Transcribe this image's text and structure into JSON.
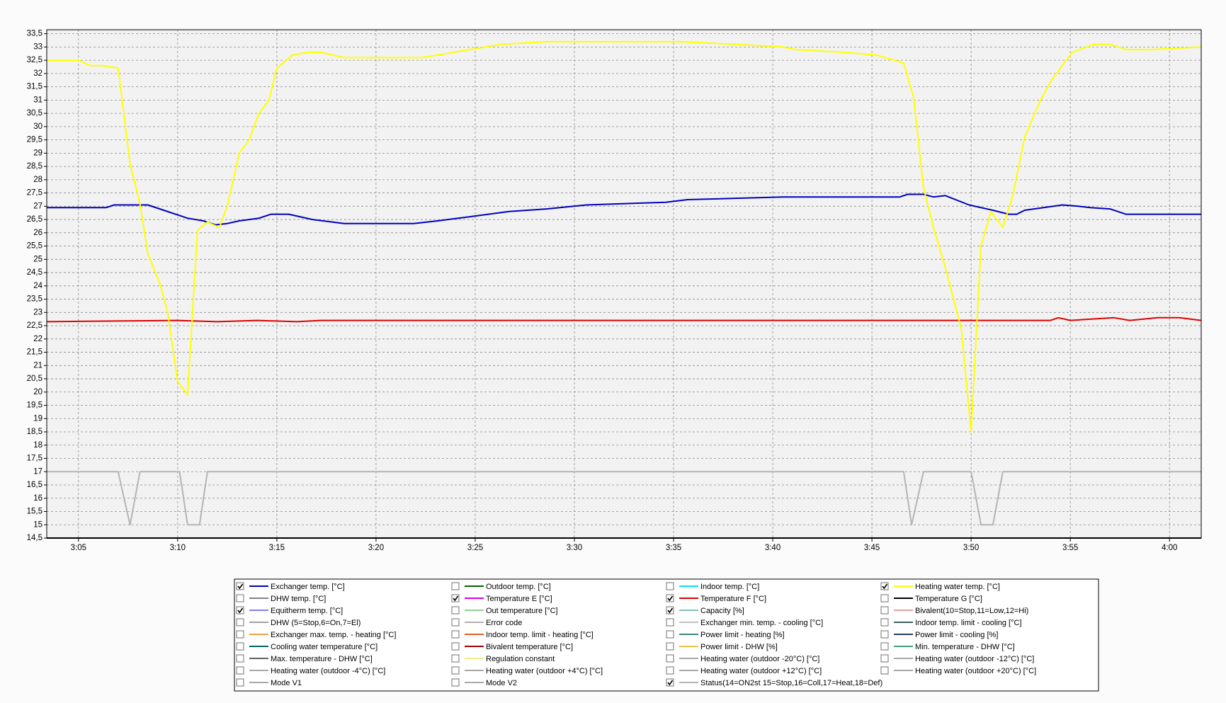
{
  "chart_data": {
    "type": "line",
    "xlim": [
      183.4,
      241.6
    ],
    "xticks": [
      {
        "value": 185,
        "label": "3:05"
      },
      {
        "value": 190,
        "label": "3:10"
      },
      {
        "value": 195,
        "label": "3:15"
      },
      {
        "value": 200,
        "label": "3:20"
      },
      {
        "value": 205,
        "label": "3:25"
      },
      {
        "value": 210,
        "label": "3:30"
      },
      {
        "value": 215,
        "label": "3:35"
      },
      {
        "value": 220,
        "label": "3:40"
      },
      {
        "value": 225,
        "label": "3:45"
      },
      {
        "value": 230,
        "label": "3:50"
      },
      {
        "value": 235,
        "label": "3:55"
      },
      {
        "value": 240,
        "label": "4:00"
      }
    ],
    "ylim": [
      14.5,
      33.65
    ],
    "yticks": [
      {
        "value": 14.5,
        "label": "14,5"
      },
      15,
      {
        "value": 15.5,
        "label": "15,5"
      },
      16,
      {
        "value": 16.5,
        "label": "16,5"
      },
      17,
      {
        "value": 17.5,
        "label": "17,5"
      },
      18,
      {
        "value": 18.5,
        "label": "18,5"
      },
      19,
      {
        "value": 19.5,
        "label": "19,5"
      },
      20,
      {
        "value": 20.5,
        "label": "20,5"
      },
      21,
      {
        "value": 21.5,
        "label": "21,5"
      },
      22,
      {
        "value": 22.5,
        "label": "22,5"
      },
      23,
      {
        "value": 23.5,
        "label": "23,5"
      },
      24,
      {
        "value": 24.5,
        "label": "24,5"
      },
      25,
      {
        "value": 25.5,
        "label": "25,5"
      },
      26,
      {
        "value": 26.5,
        "label": "26,5"
      },
      27,
      {
        "value": 27.5,
        "label": "27,5"
      },
      28,
      {
        "value": 28.5,
        "label": "28,5"
      },
      29,
      {
        "value": 29.5,
        "label": "29,5"
      },
      30,
      {
        "value": 30.5,
        "label": "30,5"
      },
      31,
      {
        "value": 31.5,
        "label": "31,5"
      },
      32,
      {
        "value": 32.5,
        "label": "32,5"
      },
      33,
      {
        "value": 33.5,
        "label": "33,5"
      }
    ],
    "grid": true,
    "series": [
      {
        "name": "Exchanger temp. [°C]",
        "color": "#0000c0",
        "checked": true,
        "x": [
          183.4,
          186.4,
          186.8,
          188.5,
          189.3,
          190.5,
          191.3,
          191.9,
          192.5,
          193.1,
          194.1,
          194.7,
          195.6,
          196.8,
          198.4,
          201.9,
          203.1,
          204.7,
          206.7,
          208.6,
          210.6,
          214.6,
          215.7,
          220.5,
          226.4,
          226.8,
          227.6,
          228.1,
          228.7,
          229.9,
          231.1,
          231.9,
          232.3,
          232.7,
          234.6,
          235.4,
          236.0,
          237.0,
          237.8,
          239.0,
          241.6
        ],
        "values": [
          26.95,
          26.95,
          27.05,
          27.05,
          26.85,
          26.55,
          26.45,
          26.3,
          26.35,
          26.45,
          26.55,
          26.7,
          26.7,
          26.5,
          26.35,
          26.35,
          26.45,
          26.6,
          26.8,
          26.9,
          27.05,
          27.15,
          27.25,
          27.35,
          27.35,
          27.45,
          27.45,
          27.35,
          27.4,
          27.05,
          26.85,
          26.7,
          26.7,
          26.85,
          27.05,
          27.0,
          26.95,
          26.9,
          26.7,
          26.7,
          26.7
        ]
      },
      {
        "name": "DHW temp. [°C]",
        "color": "#808090",
        "checked": false
      },
      {
        "name": "Equitherm temp. [°C]",
        "color": "#8080e0",
        "checked": true
      },
      {
        "name": "DHW (5=Stop,6=On,7=El)",
        "color": "#a0a0a0",
        "checked": false
      },
      {
        "name": "Exchanger max. temp. - heating [°C]",
        "color": "#f0a040",
        "checked": false
      },
      {
        "name": "Cooling water temperature [°C]",
        "color": "#006060",
        "checked": false
      },
      {
        "name": "Max. temperature - DHW [°C]",
        "color": "#606060",
        "checked": false
      },
      {
        "name": "Heating water (outdoor -4°C) [°C]",
        "color": "#a8a8a8",
        "checked": false
      },
      {
        "name": "Mode V1",
        "color": "#a8a8a8",
        "checked": false
      },
      {
        "name": "Outdoor temp. [°C]",
        "color": "#006400",
        "checked": false
      },
      {
        "name": "Temperature E [°C]",
        "color": "#e000e0",
        "checked": true
      },
      {
        "name": "Out temperature [°C]",
        "color": "#90d090",
        "checked": false
      },
      {
        "name": "Error code",
        "color": "#b0b0b0",
        "checked": false
      },
      {
        "name": "Indoor temp. limit - heating [°C]",
        "color": "#e06020",
        "checked": false
      },
      {
        "name": "Bivalent temperature [°C]",
        "color": "#a00000",
        "checked": false
      },
      {
        "name": "Regulation constant",
        "color": "#f0f080",
        "checked": false
      },
      {
        "name": "Heating water (outdoor +4°C) [°C]",
        "color": "#a8a8a8",
        "checked": false
      },
      {
        "name": "Mode V2",
        "color": "#a8a8a8",
        "checked": false
      },
      {
        "name": "Indoor temp. [°C]",
        "color": "#00e0ff",
        "checked": false
      },
      {
        "name": "Temperature F [°C]",
        "color": "#e00000",
        "checked": true,
        "x": [
          183.4,
          190.0,
          192.0,
          194.0,
          196.0,
          197.2,
          234.0,
          234.4,
          235.0,
          237.2,
          238.0,
          239.4,
          240.5,
          241.6
        ],
        "values": [
          22.65,
          22.7,
          22.65,
          22.7,
          22.65,
          22.7,
          22.7,
          22.8,
          22.7,
          22.8,
          22.7,
          22.8,
          22.8,
          22.7
        ]
      },
      {
        "name": "Capacity [%]",
        "color": "#80c0c0",
        "checked": true
      },
      {
        "name": "Exchanger min. temp. - cooling [°C]",
        "color": "#c0c0c0",
        "checked": false
      },
      {
        "name": "Power limit - heating [%]",
        "color": "#408080",
        "checked": false
      },
      {
        "name": "Power limit - DHW [%]",
        "color": "#f0c040",
        "checked": false
      },
      {
        "name": "Heating water (outdoor -20°C) [°C]",
        "color": "#a8a8a8",
        "checked": false
      },
      {
        "name": "Heating water (outdoor +12°C) [°C]",
        "color": "#a8a8a8",
        "checked": false
      },
      {
        "name": "Status(14=ON2st 15=Stop,16=Coll,17=Heat,18=Def)",
        "color": "#b4b4b4",
        "checked": true,
        "x": [
          183.4,
          187.0,
          187.6,
          188.1,
          190.1,
          190.5,
          191.1,
          191.5,
          226.6,
          227.0,
          227.6,
          230.0,
          230.5,
          231.1,
          231.6,
          241.6
        ],
        "values": [
          17,
          17,
          15,
          17,
          17,
          15,
          15,
          17,
          17,
          15,
          17,
          17,
          15,
          15,
          17,
          17
        ]
      },
      {
        "name": "Heating water temp. [°C]",
        "color": "#ffff00",
        "checked": true,
        "x": [
          183.4,
          185,
          185.6,
          186.2,
          187.0,
          187.6,
          188.1,
          188.5,
          189.1,
          189.5,
          190.0,
          190.5,
          191.0,
          191.5,
          192.1,
          192.5,
          193.1,
          193.6,
          194.1,
          194.6,
          195.0,
          195.8,
          196.6,
          197.2,
          198.4,
          200.8,
          202.3,
          203.9,
          206.3,
          208.6,
          211.4,
          213.8,
          215.3,
          218.1,
          220.5,
          221.2,
          223.6,
          225.2,
          226.6,
          227.1,
          227.6,
          228.1,
          228.7,
          229.5,
          230.0,
          230.5,
          231.0,
          231.6,
          232.1,
          232.7,
          233.5,
          234.1,
          235.1,
          236.2,
          237.0,
          237.8,
          239.0,
          241.6
        ],
        "values": [
          32.5,
          32.5,
          32.3,
          32.3,
          32.2,
          28.6,
          27.1,
          25.2,
          24.1,
          23.0,
          20.4,
          19.9,
          26.1,
          26.4,
          26.2,
          27.0,
          29.0,
          29.5,
          30.5,
          31.0,
          32.2,
          32.7,
          32.8,
          32.8,
          32.6,
          32.6,
          32.6,
          32.8,
          33.1,
          33.2,
          33.2,
          33.2,
          33.2,
          33.1,
          33.0,
          32.9,
          32.8,
          32.7,
          32.4,
          31.1,
          27.7,
          26.2,
          24.7,
          22.4,
          18.5,
          25.5,
          26.8,
          26.2,
          27.4,
          29.6,
          31.0,
          31.8,
          32.8,
          33.1,
          33.1,
          32.9,
          32.9,
          33.0
        ]
      },
      {
        "name": "Temperature G [°C]",
        "color": "#000000",
        "checked": false
      },
      {
        "name": "Bivalent(10=Stop,11=Low,12=Hi)",
        "color": "#e0a0a0",
        "checked": false
      },
      {
        "name": "Indoor temp. limit - cooling [°C]",
        "color": "#406060",
        "checked": false
      },
      {
        "name": "Power limit - cooling [%]",
        "color": "#204060",
        "checked": false
      },
      {
        "name": "Min. temperature - DHW [°C]",
        "color": "#40a080",
        "checked": false
      },
      {
        "name": "Heating water (outdoor -12°C) [°C]",
        "color": "#a8a8a8",
        "checked": false
      },
      {
        "name": "Heating water (outdoor +20°C) [°C]",
        "color": "#a8a8a8",
        "checked": false
      }
    ]
  }
}
